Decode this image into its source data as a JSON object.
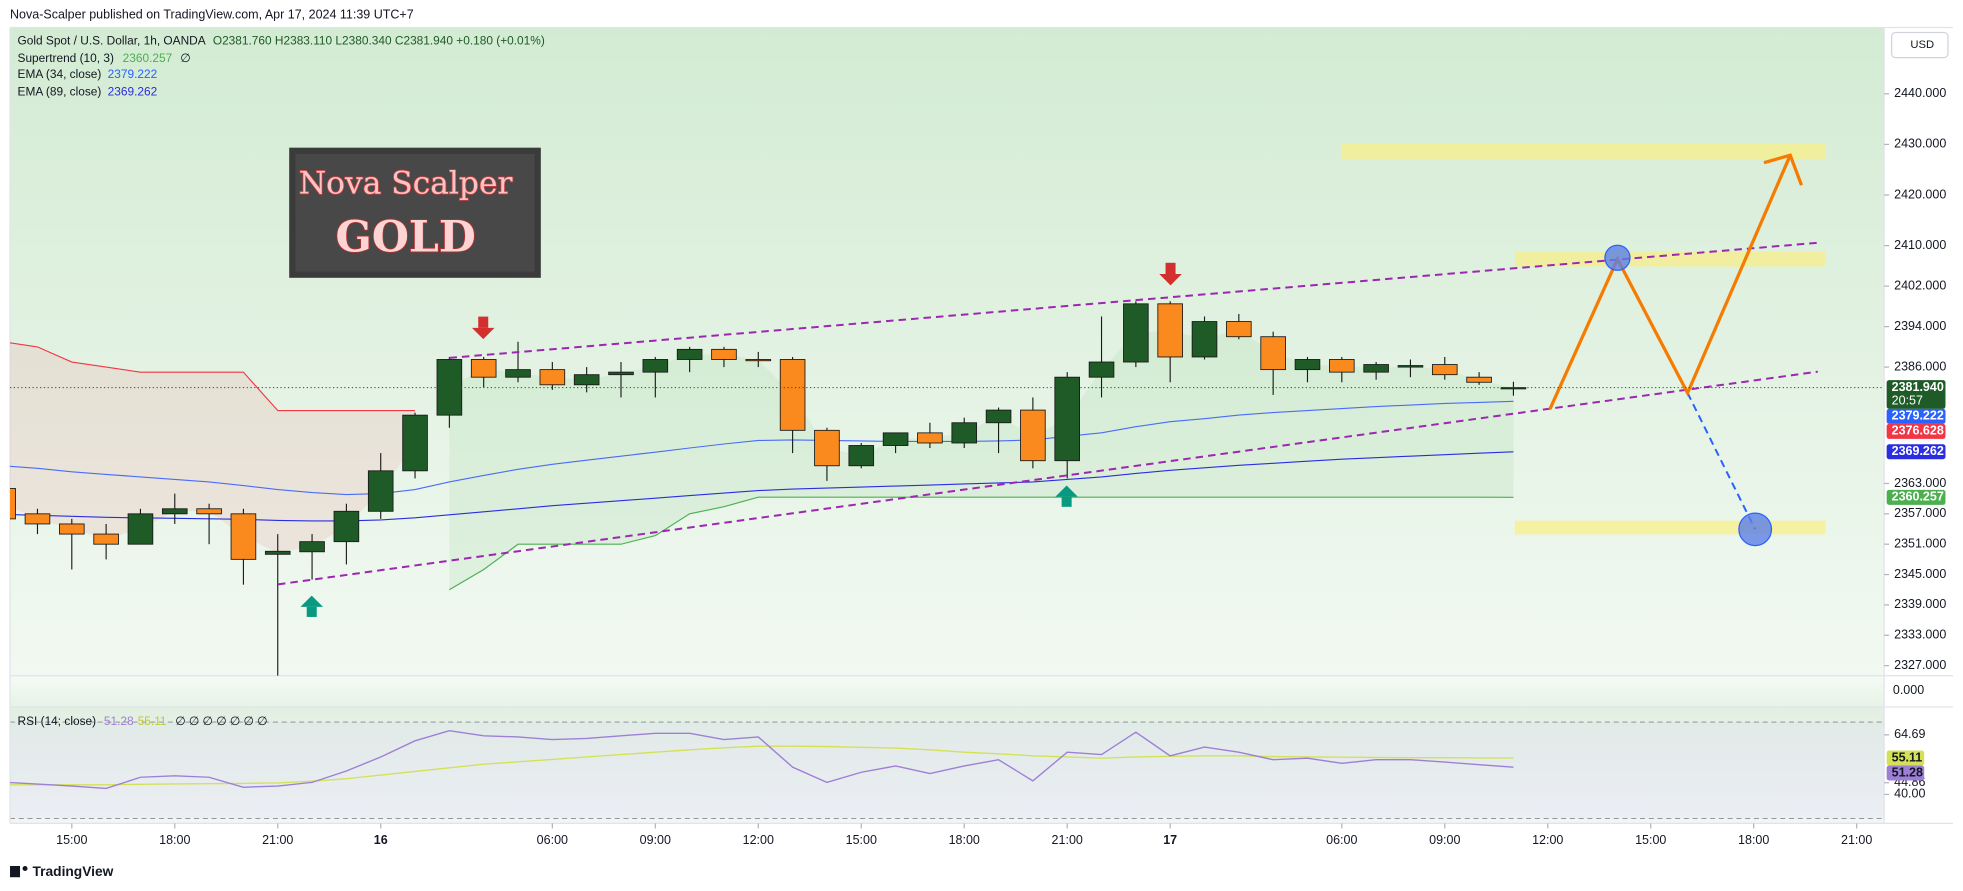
{
  "header": {
    "published": "Nova-Scalper published on TradingView.com, Apr 17, 2024 11:39 UTC+7",
    "currency_button": "USD",
    "footer_logo": "TradingView",
    "banner_line1": "Nova Scalper",
    "banner_line2": "GOLD"
  },
  "chart_data": [
    {
      "type": "candlestick",
      "title": "Gold Spot / U.S. Dollar, 1h, OANDA",
      "ohlc_legend": "O2381.760 H2383.110 L2380.340 C2381.940 +0.180 (+0.01%)",
      "up_color": "#1e5b27",
      "down_color": "#fb8a1e",
      "open": [
        2362,
        2357,
        2355,
        2353,
        2351,
        2357,
        2358,
        2357,
        2349,
        2349.5,
        2351.5,
        2357.5,
        2365.5,
        2376.5,
        2387.5,
        2384,
        2385.5,
        2382.5,
        2384.5,
        2385,
        2387.5,
        2389.5,
        2387.5,
        2387.5,
        2373.5,
        2366.5,
        2370.5,
        2373,
        2371,
        2375,
        2377.5,
        2367.5,
        2384,
        2387,
        2398.5,
        2388,
        2395,
        2392,
        2385.5,
        2387.5,
        2385,
        2386,
        2386.5,
        2384,
        2381.76
      ],
      "high": [
        2363,
        2358,
        2356,
        2355,
        2358,
        2361,
        2359,
        2358,
        2353,
        2353,
        2359,
        2369,
        2377,
        2388,
        2388,
        2391,
        2387,
        2386,
        2387,
        2388,
        2390,
        2390,
        2389,
        2388,
        2374,
        2371,
        2373,
        2375,
        2376,
        2378,
        2380,
        2385,
        2396,
        2399,
        2399,
        2396,
        2396.5,
        2393,
        2388,
        2388,
        2387,
        2387.5,
        2388,
        2385,
        2383.11
      ],
      "low": [
        2355,
        2353,
        2346,
        2348,
        2351,
        2355,
        2351,
        2343,
        2325,
        2344,
        2347,
        2356,
        2364,
        2374,
        2382,
        2383,
        2381.5,
        2381,
        2380,
        2380,
        2385,
        2386,
        2386,
        2369,
        2363.5,
        2366,
        2369,
        2370,
        2370,
        2369,
        2366,
        2364,
        2380,
        2386,
        2383,
        2387.5,
        2391.5,
        2380.5,
        2383,
        2383,
        2383.5,
        2384,
        2383.5,
        2382.5,
        2380.34
      ],
      "close": [
        2356,
        2355,
        2353,
        2351,
        2357,
        2358,
        2357,
        2348,
        2349.6,
        2351.5,
        2357.5,
        2365.5,
        2376.5,
        2387.5,
        2384,
        2385.5,
        2382.5,
        2384.5,
        2385,
        2387.5,
        2389.5,
        2387.5,
        2387.3,
        2373.5,
        2366.5,
        2370.5,
        2373,
        2371,
        2375,
        2377.5,
        2367.5,
        2384,
        2387,
        2398.5,
        2388,
        2395,
        2392,
        2385.5,
        2387.5,
        2385,
        2386.5,
        2386.3,
        2384.5,
        2383,
        2381.94
      ],
      "series": [
        {
          "name": "Supertrend (10, 3)",
          "legend_value": "2360.257",
          "legend_extra": "∅",
          "color": "#4caf50",
          "values": [
            null,
            null,
            null,
            null,
            null,
            null,
            null,
            null,
            null,
            null,
            null,
            null,
            null,
            2342,
            2346,
            2351,
            2351,
            2351,
            2351,
            2352.7,
            2357,
            2358.4,
            2360.3,
            2360.3,
            2360.3,
            2360.3,
            2360.3,
            2360.3,
            2360.3,
            2360.3,
            2360.3,
            2360.3,
            2360.3,
            2360.3,
            2360.3,
            2360.3,
            2360.3,
            2360.3,
            2360.3,
            2360.3,
            2360.3,
            2360.3,
            2360.3,
            2360.3,
            2360.257
          ]
        },
        {
          "color": "#f23645",
          "values": [
            2391,
            2390,
            2387,
            2386,
            2385,
            2385,
            2385,
            2385,
            2377.4,
            2377.4,
            2377.4,
            2377.4,
            2377.4,
            null,
            null,
            null,
            null,
            null,
            null,
            null,
            null,
            null,
            null,
            null,
            null,
            null,
            null,
            null,
            null,
            null,
            null,
            null,
            null,
            null,
            null,
            null,
            null,
            null,
            null,
            null,
            null,
            null,
            null,
            null,
            null
          ]
        },
        {
          "name": "EMA (34, close)",
          "legend_value": "2379.222",
          "color": "#4a6cf7",
          "values": [
            2366.5,
            2366,
            2365.3,
            2364.8,
            2364.3,
            2363.8,
            2363.3,
            2362.6,
            2361.8,
            2361.2,
            2360.8,
            2361,
            2361.8,
            2363.3,
            2364.6,
            2365.8,
            2366.8,
            2367.6,
            2368.4,
            2369.2,
            2370,
            2370.8,
            2371.5,
            2371.6,
            2371.5,
            2371.4,
            2371.3,
            2371.3,
            2371.3,
            2371.4,
            2371.6,
            2372.3,
            2373,
            2374.2,
            2375.2,
            2375.8,
            2376.5,
            2377,
            2377.4,
            2377.8,
            2378.2,
            2378.5,
            2378.8,
            2379,
            2379.222
          ]
        },
        {
          "name": "EMA (89, close)",
          "legend_value": "2369.262",
          "color": "#2a2ee0",
          "values": [
            2356.9,
            2356.7,
            2356.5,
            2356.3,
            2356.2,
            2356.1,
            2356,
            2355.9,
            2355.7,
            2355.6,
            2355.6,
            2355.8,
            2356.2,
            2356.8,
            2357.4,
            2358,
            2358.6,
            2359.1,
            2359.6,
            2360.1,
            2360.6,
            2361.1,
            2361.6,
            2361.9,
            2362.1,
            2362.3,
            2362.5,
            2362.7,
            2362.9,
            2363.1,
            2363.3,
            2363.8,
            2364.3,
            2365,
            2365.6,
            2366.1,
            2366.6,
            2367,
            2367.4,
            2367.8,
            2368.1,
            2368.4,
            2368.7,
            2369,
            2369.262
          ]
        }
      ],
      "price_labels": [
        {
          "value": 2381.94,
          "label": "2381.940",
          "color": "#1e5b27"
        },
        {
          "value": 2379.222,
          "label": "2379.222",
          "color": "#2962ff"
        },
        {
          "value": 2376.628,
          "label": "2376.628",
          "color": "#f23645"
        },
        {
          "value": 2369.262,
          "label": "2369.262",
          "color": "#2a2ee0"
        },
        {
          "value": 2360.257,
          "label": "2360.257",
          "color": "#4caf50"
        }
      ],
      "countdown": "20:57",
      "volume_axis_label": "0.000",
      "ylim": [
        2325,
        2453.1
      ],
      "yticks": [
        {
          "value": 2440,
          "label": "2440.000"
        },
        {
          "value": 2430,
          "label": "2430.000"
        },
        {
          "value": 2420,
          "label": "2420.000"
        },
        {
          "value": 2410,
          "label": "2410.000"
        },
        {
          "value": 2402,
          "label": "2402.000"
        },
        {
          "value": 2394,
          "label": "2394.000"
        },
        {
          "value": 2386,
          "label": "2386.000"
        },
        {
          "value": 2363,
          "label": "2363.000"
        },
        {
          "value": 2357,
          "label": "2357.000"
        },
        {
          "value": 2351,
          "label": "2351.000"
        },
        {
          "value": 2345,
          "label": "2345.000"
        },
        {
          "value": 2339,
          "label": "2339.000"
        },
        {
          "value": 2333,
          "label": "2333.000"
        },
        {
          "value": 2327,
          "label": "2327.000"
        }
      ],
      "xlim": [
        0.2,
        54.8
      ],
      "xticks": [
        {
          "value": 2,
          "label": "15:00"
        },
        {
          "value": 5,
          "label": "18:00"
        },
        {
          "value": 8,
          "label": "21:00"
        },
        {
          "value": 11,
          "label": "16"
        },
        {
          "value": 16,
          "label": "06:00"
        },
        {
          "value": 19,
          "label": "09:00"
        },
        {
          "value": 22,
          "label": "12:00"
        },
        {
          "value": 25,
          "label": "15:00"
        },
        {
          "value": 28,
          "label": "18:00"
        },
        {
          "value": 31,
          "label": "21:00"
        },
        {
          "value": 34,
          "label": "17"
        },
        {
          "value": 39,
          "label": "06:00"
        },
        {
          "value": 42,
          "label": "09:00"
        },
        {
          "value": 45,
          "label": "12:00"
        },
        {
          "value": 48,
          "label": "15:00"
        },
        {
          "value": 51,
          "label": "18:00"
        },
        {
          "value": 54,
          "label": "21:00"
        }
      ]
    },
    {
      "type": "line",
      "title": "RSI (14; close)",
      "legend_extra": "∅ ∅ ∅ ∅ ∅ ∅ ∅",
      "series": [
        {
          "legend_value": "51.28",
          "color": "#9e7fd6",
          "values": [
            45.1,
            44.3,
            43.5,
            42.5,
            47.1,
            47.7,
            47.1,
            43,
            43.5,
            45,
            49.7,
            55.5,
            62.2,
            66.4,
            64.3,
            63.8,
            62.7,
            63.2,
            64.3,
            65.3,
            65.3,
            62.7,
            63.8,
            51.3,
            45,
            49.2,
            51.8,
            48.7,
            51.8,
            54.4,
            45.6,
            57.5,
            56.5,
            65.8,
            56,
            59.6,
            57.5,
            54.4,
            55,
            52.9,
            54.4,
            54.4,
            53.4,
            52.3,
            51.28
          ]
        },
        {
          "legend_value": "55.11",
          "color": "#d4e157",
          "values": [
            44,
            44,
            44,
            44,
            44.2,
            44.4,
            44.5,
            44.6,
            44.8,
            45.5,
            46.5,
            48,
            49.5,
            51,
            52.5,
            53.5,
            54.5,
            55.5,
            56.5,
            57.5,
            58.5,
            59.3,
            60,
            60,
            59.8,
            59.5,
            59.2,
            58.5,
            57.5,
            56.8,
            56,
            55.5,
            55,
            55.5,
            55.8,
            56,
            56,
            55.7,
            55.5,
            55.4,
            55.3,
            55.2,
            55.2,
            55.1,
            55.11
          ]
        }
      ],
      "ylim": [
        28,
        76.2
      ],
      "yticks": [
        64.69,
        44.86,
        {
          "value": 40,
          "label": "40.00"
        }
      ]
    }
  ]
}
